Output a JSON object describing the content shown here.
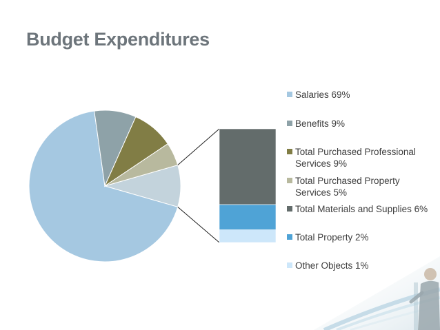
{
  "slide": {
    "title": "Budget Expenditures"
  },
  "chart_data": {
    "type": "pie",
    "subtype": "bar-of-pie",
    "title": "Budget Expenditures",
    "series": [
      {
        "name": "Expenditures",
        "categories": [
          "Salaries",
          "Benefits",
          "Total Purchased Professional Services",
          "Total Purchased Property Services",
          "Total Materials and Supplies",
          "Total Property",
          "Other Objects"
        ],
        "values": [
          69,
          9,
          9,
          5,
          6,
          2,
          1
        ],
        "unit": "%",
        "colors": [
          "#a5c8e1",
          "#8ea2a8",
          "#817d45",
          "#b8b99e",
          "#636c6b",
          "#4fa3d6",
          "#cde7fa"
        ]
      }
    ],
    "pie_categories": [
      "Salaries",
      "Benefits",
      "Total Purchased Professional Services",
      "Total Purchased Property Services"
    ],
    "bar_categories": [
      "Total Materials and Supplies",
      "Total Property",
      "Other Objects"
    ],
    "legend_position": "right",
    "legend": [
      "Salaries 69%",
      "Benefits 9%",
      "Total Purchased Professional Services 9%",
      "Total Purchased Property Services 5%",
      "Total Materials and Supplies 6%",
      "Total Property 2%",
      "Other Objects 1%"
    ],
    "grid": false
  }
}
